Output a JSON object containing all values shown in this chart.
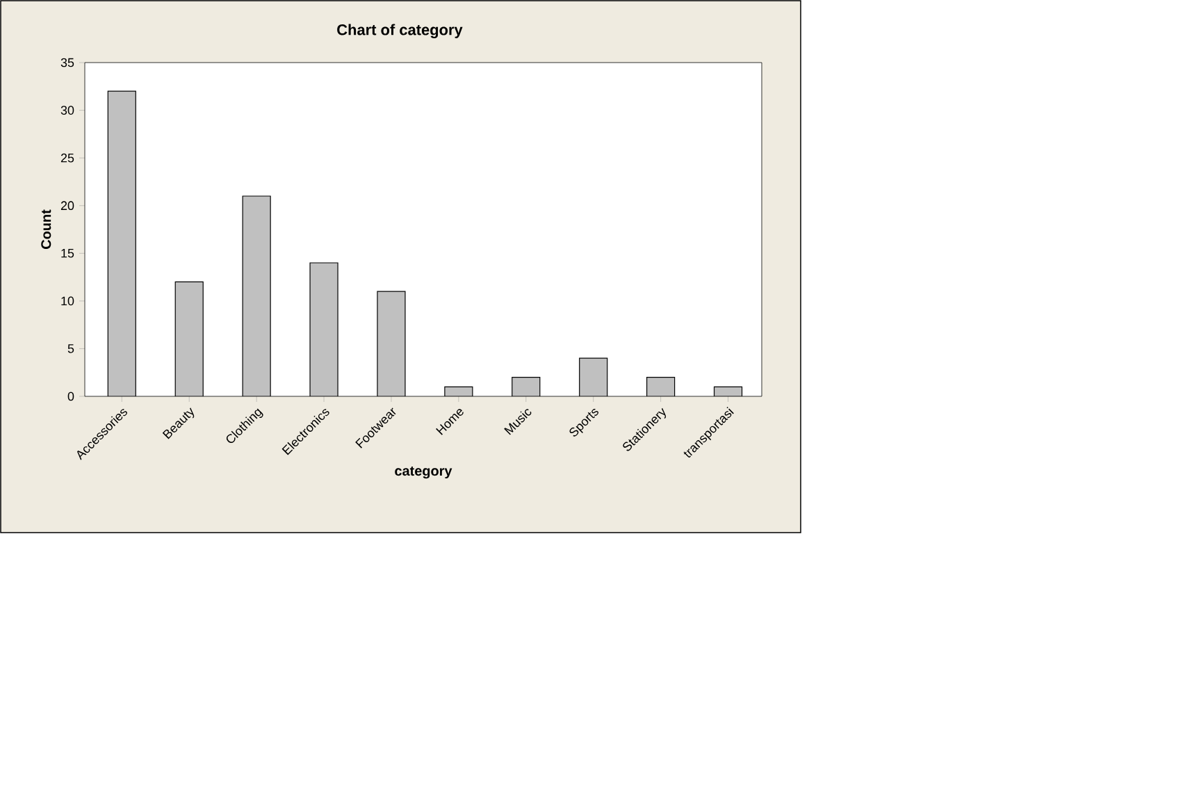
{
  "chart_data": {
    "type": "bar",
    "title": "Chart of category",
    "xlabel": "category",
    "ylabel": "Count",
    "categories": [
      "Accessories",
      "Beauty",
      "Clothing",
      "Electronics",
      "Footwear",
      "Home",
      "Music",
      "Sports",
      "Stationery",
      "transportasi"
    ],
    "values": [
      32,
      12,
      21,
      14,
      11,
      1,
      2,
      4,
      2,
      1
    ],
    "color": "#c0c0c0",
    "ylim": [
      0,
      35
    ],
    "yticks": [
      0,
      5,
      10,
      15,
      20,
      25,
      30,
      35
    ]
  }
}
